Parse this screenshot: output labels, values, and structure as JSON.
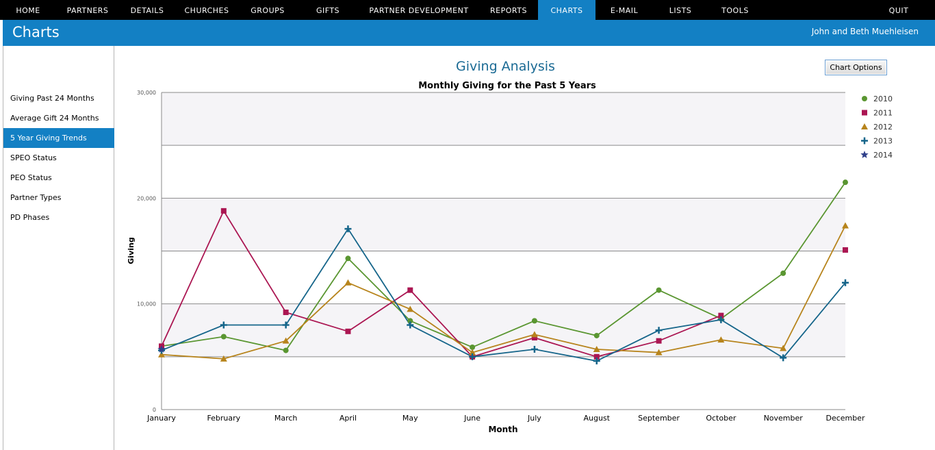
{
  "nav": {
    "items": [
      "HOME",
      "PARTNERS",
      "DETAILS",
      "CHURCHES",
      "GROUPS",
      "GIFTS",
      "PARTNER DEVELOPMENT",
      "REPORTS",
      "CHARTS",
      "E-MAIL",
      "LISTS",
      "TOOLS"
    ],
    "active": "CHARTS",
    "quit": "QUIT"
  },
  "header": {
    "title": "Charts",
    "user": "John and Beth Muehleisen"
  },
  "sidebar": {
    "items": [
      "Giving Past 24 Months",
      "Average Gift 24 Months",
      "5 Year Giving Trends",
      "SPEO Status",
      "PEO Status",
      "Partner Types",
      "PD Phases"
    ],
    "active": "5 Year Giving Trends"
  },
  "page": {
    "chart_heading": "Giving Analysis",
    "options_button": "Chart Options"
  },
  "colors": {
    "accent": "#1380c4",
    "plot_band": "#f5f4f7"
  },
  "chart_data": {
    "type": "line",
    "title": "Monthly Giving for the Past 5 Years",
    "xlabel": "Month",
    "ylabel": "Giving",
    "categories": [
      "January",
      "February",
      "March",
      "April",
      "May",
      "June",
      "July",
      "August",
      "September",
      "October",
      "November",
      "December"
    ],
    "yticks": [
      "0",
      "10,000",
      "20,000",
      "30,000"
    ],
    "ylim": [
      0,
      30000
    ],
    "legend_position": "right",
    "series": [
      {
        "name": "2010",
        "color": "#5a9631",
        "marker": "circle",
        "values": [
          6000,
          6900,
          5600,
          14300,
          8400,
          5900,
          8400,
          7000,
          11300,
          8600,
          12900,
          21500
        ]
      },
      {
        "name": "2011",
        "color": "#ab1652",
        "marker": "square",
        "values": [
          6000,
          18800,
          9200,
          7400,
          11300,
          5000,
          6800,
          5000,
          6500,
          8900,
          null,
          15100
        ]
      },
      {
        "name": "2012",
        "color": "#b7841c",
        "marker": "triangle",
        "values": [
          5200,
          4800,
          6500,
          12000,
          9500,
          5400,
          7100,
          5700,
          5400,
          6600,
          5800,
          17400
        ]
      },
      {
        "name": "2013",
        "color": "#15658a",
        "marker": "plus",
        "values": [
          5600,
          8000,
          8000,
          17100,
          8000,
          5000,
          5700,
          4600,
          7500,
          8500,
          4900,
          12000
        ]
      },
      {
        "name": "2014",
        "color": "#2f3f8a",
        "marker": "star",
        "values": [
          5700,
          null,
          null,
          null,
          null,
          null,
          null,
          null,
          null,
          null,
          null,
          null
        ]
      }
    ]
  }
}
